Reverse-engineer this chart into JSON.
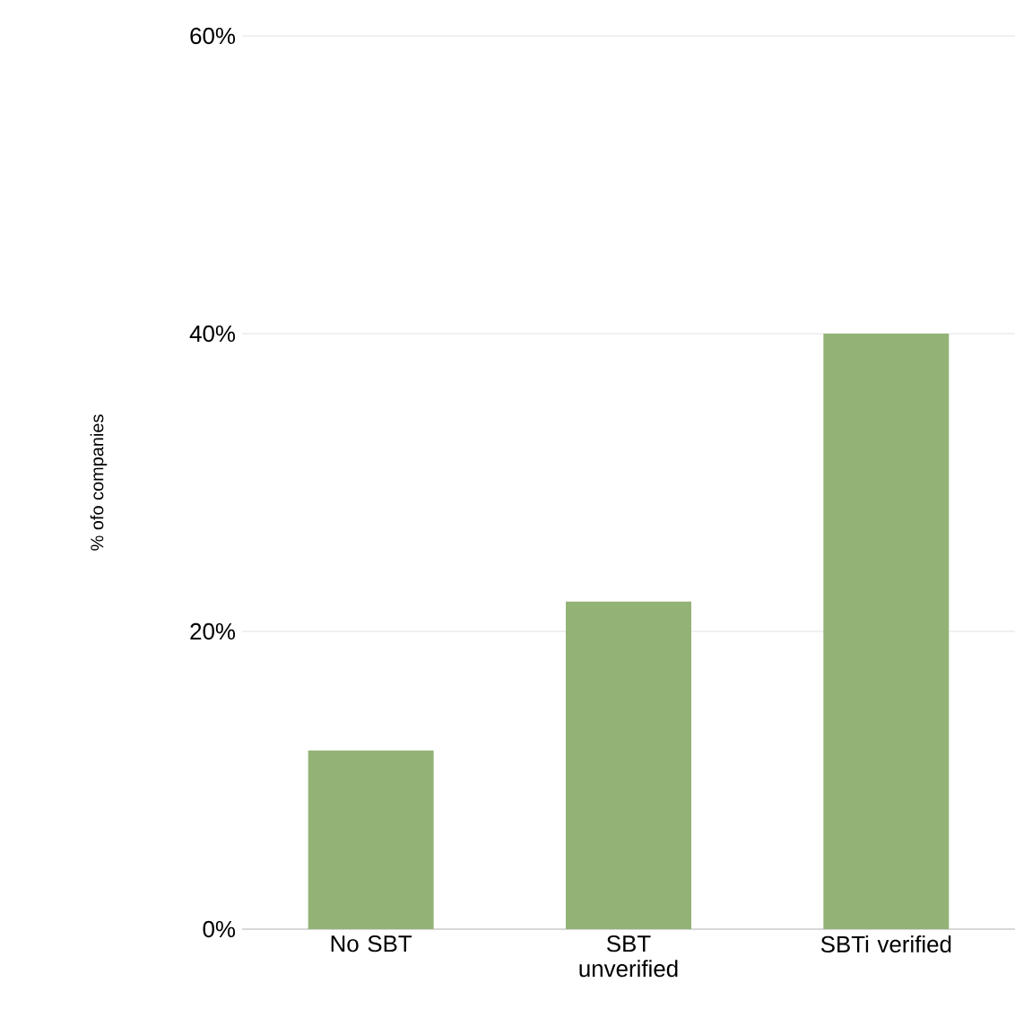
{
  "chart_data": {
    "type": "bar",
    "ylabel": "% ofo companies",
    "categories": [
      "No SBT",
      "SBT unverified",
      "SBTi verified"
    ],
    "values": [
      12,
      22,
      40
    ],
    "color": "#93b376",
    "ylim": [
      0,
      60
    ],
    "yticks": [
      {
        "value": 0,
        "label": "0%"
      },
      {
        "value": 20,
        "label": "20%"
      },
      {
        "value": 40,
        "label": "40%"
      },
      {
        "value": 60,
        "label": "60%"
      }
    ],
    "grid": "y"
  }
}
